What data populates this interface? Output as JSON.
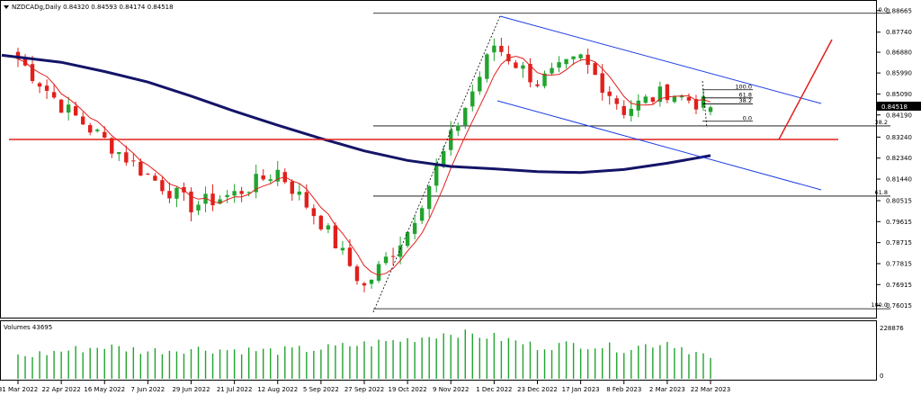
{
  "header": {
    "symbol_line": "NZDCADg,Daily  0.84320 0.84593 0.84174 0.84518",
    "menu_icon": "triangle-down-icon"
  },
  "volume_panel": {
    "title": "Volumes 43695",
    "max_label": "228876",
    "zero_label": "0"
  },
  "price_axis": {
    "labels": [
      "0.88665",
      "0.87740",
      "0.86880",
      "0.85990",
      "0.85090",
      "0.84190",
      "0.83240",
      "0.82340",
      "0.81440",
      "0.80515",
      "0.79615",
      "0.78715",
      "0.77815",
      "0.76915",
      "0.76015"
    ],
    "current_price": "0.84518"
  },
  "time_axis": {
    "labels": [
      "31 Mar 2022",
      "22 Apr 2022",
      "16 May 2022",
      "7 Jun 2022",
      "29 Jun 2022",
      "21 Jul 2022",
      "12 Aug 2022",
      "5 Sep 2022",
      "27 Sep 2022",
      "19 Oct 2022",
      "9 Nov 2022",
      "1 Dec 2022",
      "23 Dec 2022",
      "17 Jan 2023",
      "8 Feb 2023",
      "2 Mar 2023",
      "22 Mar 2023"
    ]
  },
  "fib_large": {
    "levels": [
      {
        "label": "0.0",
        "price": 0.8855
      },
      {
        "label": "38.2",
        "price": 0.8372
      },
      {
        "label": "61.8",
        "price": 0.8071
      },
      {
        "label": "100.0",
        "price": 0.7588
      }
    ]
  },
  "fib_small": {
    "levels": [
      {
        "label": "100.0",
        "price": 0.8527
      },
      {
        "label": "61.8",
        "price": 0.8492
      },
      {
        "label": "38.2",
        "price": 0.8466
      },
      {
        "label": "0.0",
        "price": 0.8392
      }
    ]
  },
  "colors": {
    "bull": "#22a32f",
    "bear": "#e0201c",
    "ma_fast": "#e0201c",
    "ma_slow": "#141468",
    "channel": "#1e3ee6",
    "support": "#e0201c",
    "fib": "#000000",
    "volume": "#22a32f",
    "grid": "#000000"
  },
  "chart_data": [
    {
      "type": "candlestick",
      "title": "NZDCADg,Daily",
      "ohlc_last": {
        "open": 0.8432,
        "high": 0.84593,
        "low": 0.84174,
        "close": 0.84518
      },
      "x": [
        "31 Mar 2022",
        "22 Apr 2022",
        "16 May 2022",
        "7 Jun 2022",
        "29 Jun 2022",
        "21 Jul 2022",
        "12 Aug 2022",
        "5 Sep 2022",
        "27 Sep 2022",
        "19 Oct 2022",
        "9 Nov 2022",
        "1 Dec 2022",
        "23 Dec 2022",
        "17 Jan 2023",
        "8 Feb 2023",
        "2 Mar 2023",
        "22 Mar 2023"
      ],
      "close_approx": [
        0.866,
        0.846,
        0.831,
        0.816,
        0.803,
        0.808,
        0.818,
        0.796,
        0.768,
        0.792,
        0.832,
        0.872,
        0.856,
        0.866,
        0.844,
        0.852,
        0.845
      ],
      "ma_slow": [
        0.8675,
        0.8645,
        0.8605,
        0.856,
        0.85,
        0.8435,
        0.8375,
        0.8318,
        0.8265,
        0.8224,
        0.8198,
        0.8188,
        0.8176,
        0.8172,
        0.8185,
        0.8212,
        0.8245
      ],
      "ylim": [
        0.75615,
        0.88965
      ]
    },
    {
      "type": "bar",
      "title": "Volumes 43695",
      "x": [
        "31 Mar 2022",
        "22 Apr 2022",
        "16 May 2022",
        "7 Jun 2022",
        "29 Jun 2022",
        "21 Jul 2022",
        "12 Aug 2022",
        "5 Sep 2022",
        "27 Sep 2022",
        "19 Oct 2022",
        "9 Nov 2022",
        "1 Dec 2022",
        "23 Dec 2022",
        "17 Jan 2023",
        "8 Feb 2023",
        "2 Mar 2023",
        "22 Mar 2023"
      ],
      "values": [
        95000,
        120000,
        140000,
        120000,
        130000,
        125000,
        120000,
        130000,
        150000,
        170000,
        200000,
        180000,
        140000,
        150000,
        130000,
        160000,
        90000
      ],
      "ylim": [
        0,
        228876
      ]
    }
  ]
}
